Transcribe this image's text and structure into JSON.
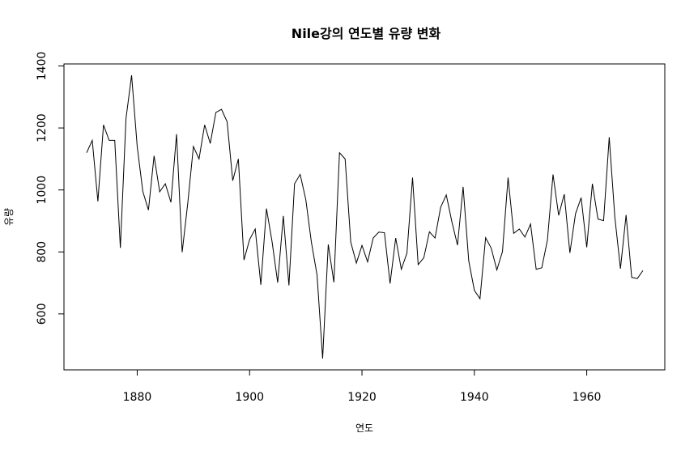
{
  "chart_data": {
    "type": "line",
    "title": "Nile강의 연도별 유량 변화",
    "xlabel": "연도",
    "ylabel": "유량",
    "xlim": [
      1871,
      1970
    ],
    "ylim": [
      456,
      1370
    ],
    "x_ticks": [
      1880,
      1900,
      1920,
      1940,
      1960
    ],
    "y_ticks": [
      600,
      800,
      1000,
      1200,
      1400
    ],
    "grid": false,
    "series": [
      {
        "x": [
          1871,
          1872,
          1873,
          1874,
          1875,
          1876,
          1877,
          1878,
          1879,
          1880,
          1881,
          1882,
          1883,
          1884,
          1885,
          1886,
          1887,
          1888,
          1889,
          1890,
          1891,
          1892,
          1893,
          1894,
          1895,
          1896,
          1897,
          1898,
          1899,
          1900,
          1901,
          1902,
          1903,
          1904,
          1905,
          1906,
          1907,
          1908,
          1909,
          1910,
          1911,
          1912,
          1913,
          1914,
          1915,
          1916,
          1917,
          1918,
          1919,
          1920,
          1921,
          1922,
          1923,
          1924,
          1925,
          1926,
          1927,
          1928,
          1929,
          1930,
          1931,
          1932,
          1933,
          1934,
          1935,
          1936,
          1937,
          1938,
          1939,
          1940,
          1941,
          1942,
          1943,
          1944,
          1945,
          1946,
          1947,
          1948,
          1949,
          1950,
          1951,
          1952,
          1953,
          1954,
          1955,
          1956,
          1957,
          1958,
          1959,
          1960,
          1961,
          1962,
          1963,
          1964,
          1965,
          1966,
          1967,
          1968,
          1969,
          1970
        ],
        "values": [
          1120,
          1160,
          963,
          1210,
          1160,
          1160,
          813,
          1230,
          1370,
          1140,
          995,
          935,
          1110,
          994,
          1020,
          960,
          1180,
          799,
          958,
          1140,
          1100,
          1210,
          1150,
          1250,
          1260,
          1220,
          1030,
          1100,
          774,
          840,
          874,
          694,
          940,
          833,
          701,
          916,
          692,
          1020,
          1050,
          969,
          831,
          726,
          456,
          824,
          702,
          1120,
          1100,
          832,
          764,
          821,
          768,
          845,
          864,
          862,
          698,
          845,
          744,
          796,
          1040,
          759,
          781,
          865,
          845,
          944,
          984,
          897,
          822,
          1010,
          771,
          676,
          649,
          846,
          812,
          742,
          801,
          1040,
          860,
          874,
          848,
          890,
          744,
          749,
          838,
          1050,
          918,
          986,
          797,
          923,
          975,
          815,
          1020,
          906,
          901,
          1170,
          912,
          746,
          919,
          718,
          714,
          740
        ]
      }
    ]
  }
}
